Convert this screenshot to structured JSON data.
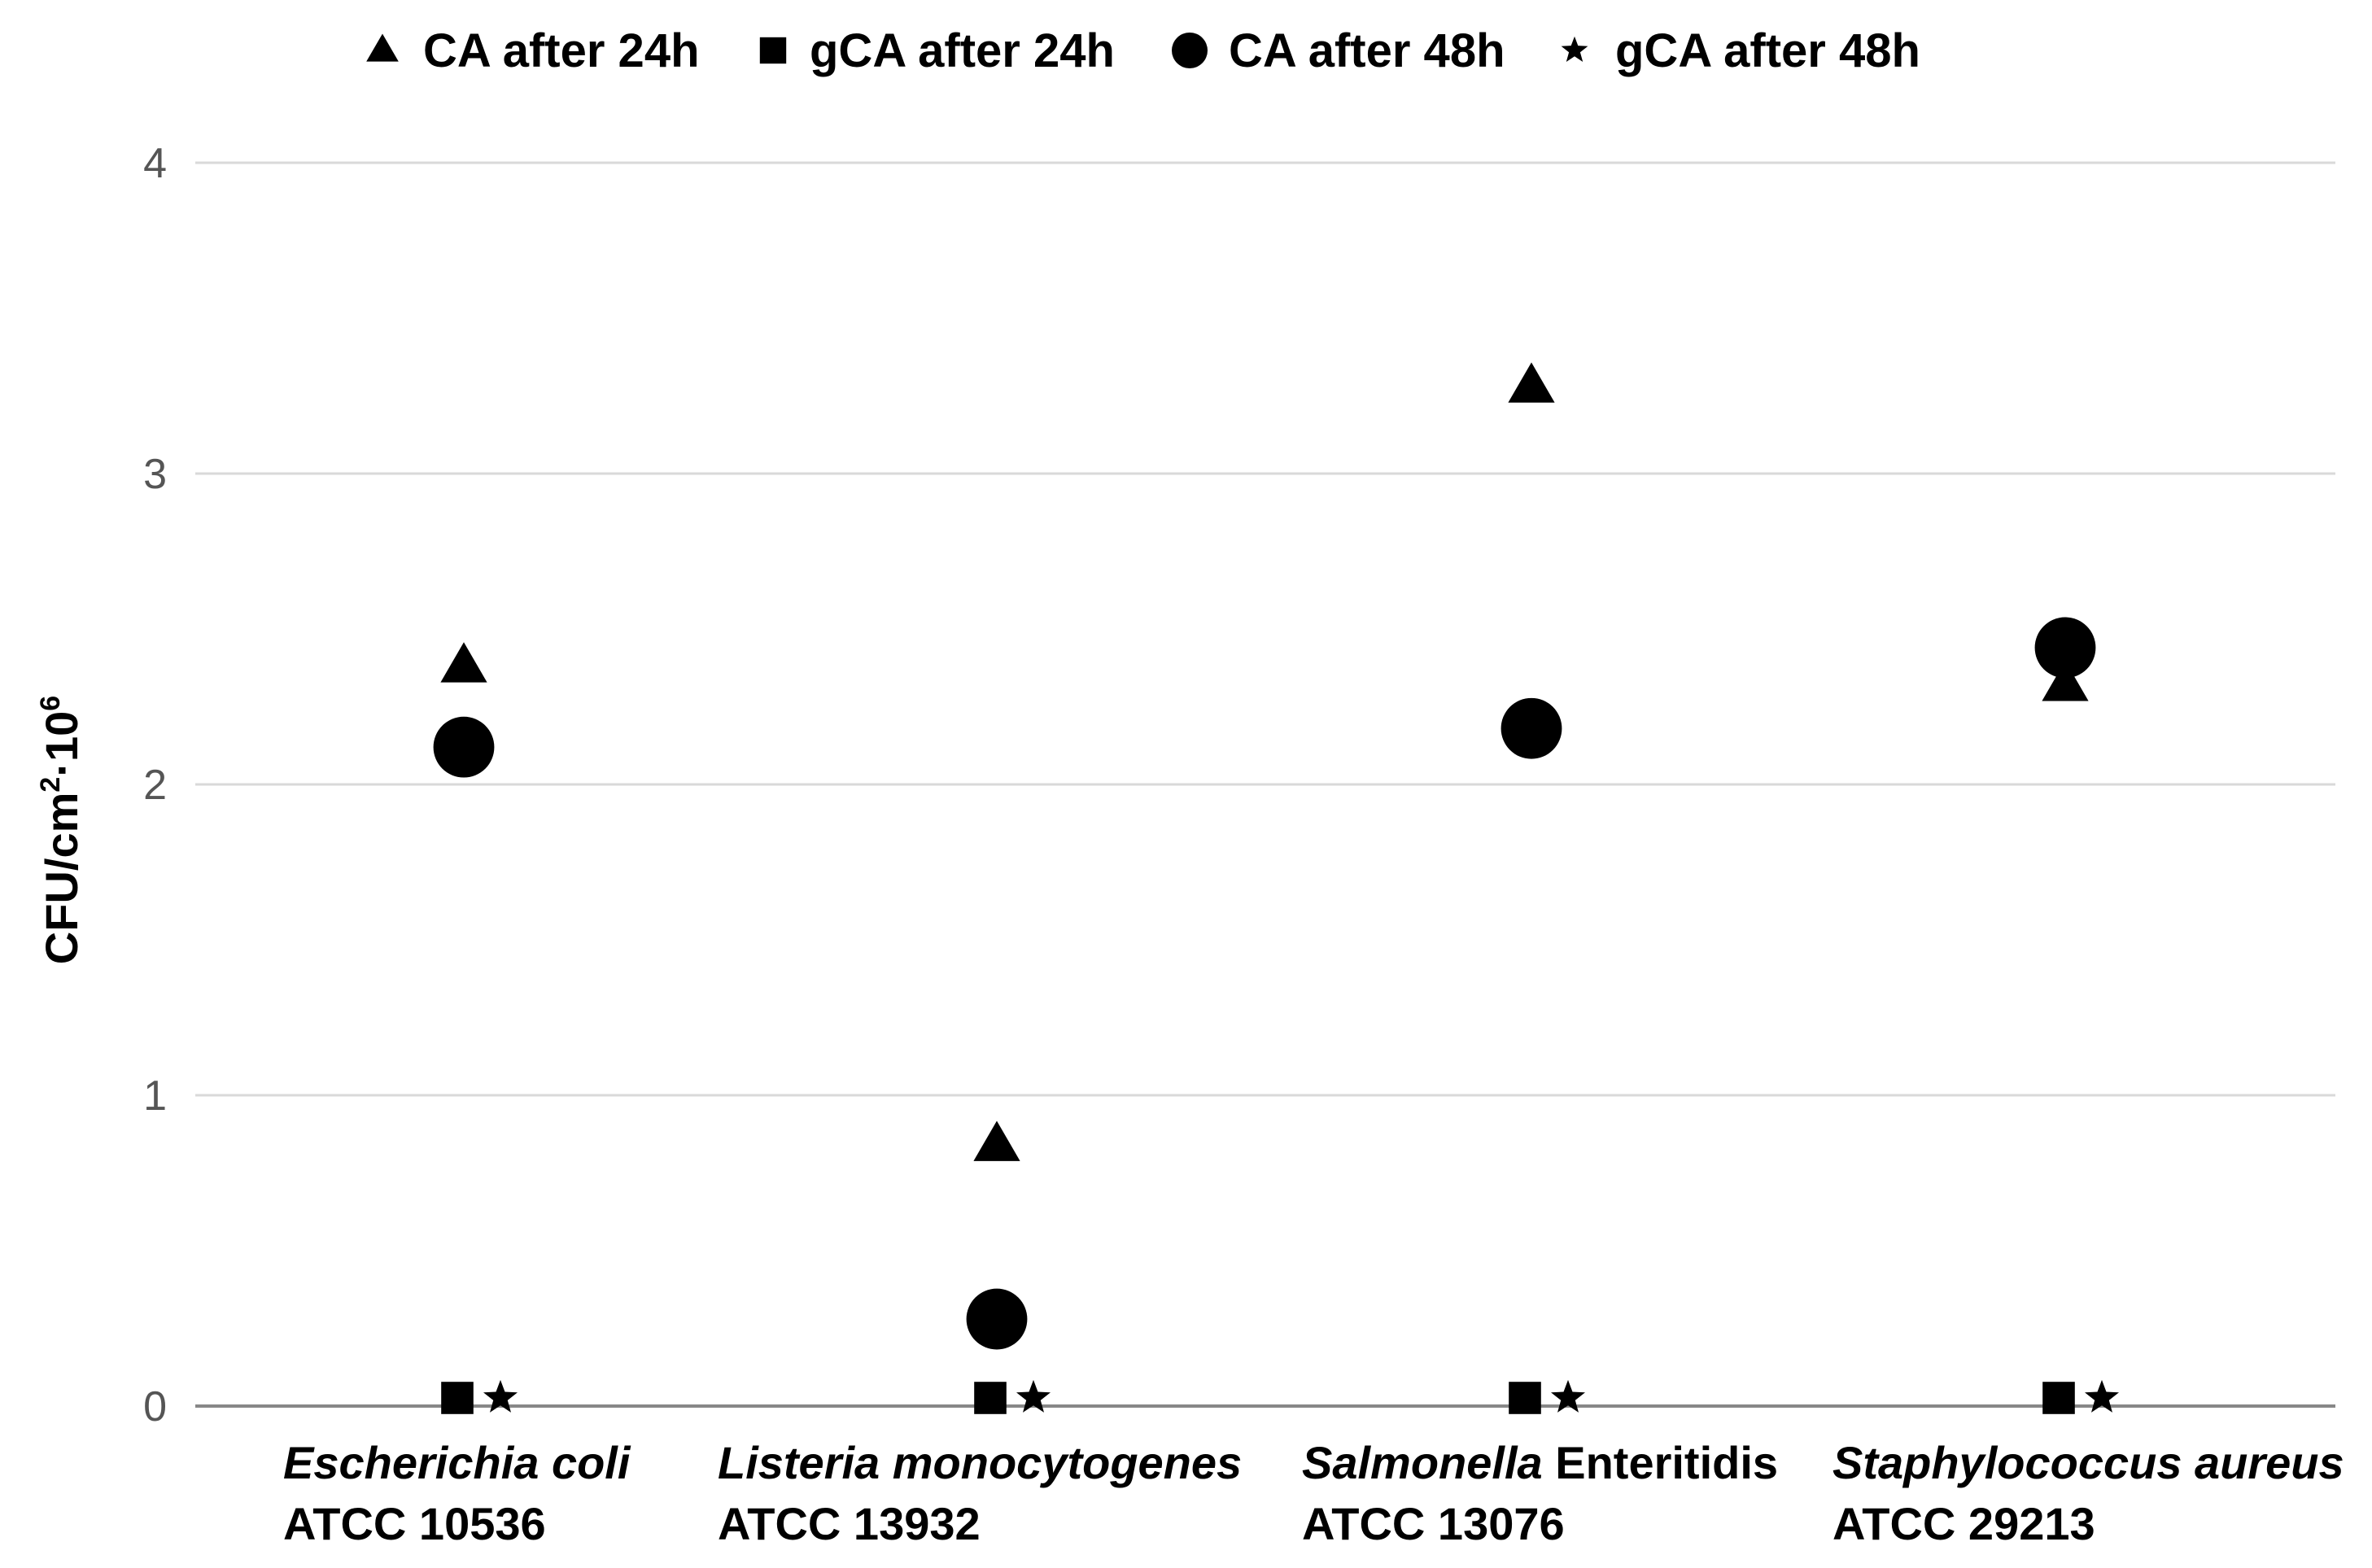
{
  "chart_data": {
    "type": "scatter",
    "title": "",
    "xlabel": "",
    "ylabel": {
      "text": "CFU/cm",
      "sup1": "2",
      "sep": "·",
      "base": "10",
      "sup2": "6"
    },
    "ylim": [
      0,
      4
    ],
    "yticks": [
      "0",
      "1",
      "2",
      "3",
      "4"
    ],
    "grid": true,
    "legend_position": "top",
    "categories": [
      {
        "name_italic": "Escherichia coli",
        "name_plain": "",
        "strain": "ATCC 10536"
      },
      {
        "name_italic": "Listeria monocytogenes",
        "name_plain": "",
        "strain": "ATCC 13932"
      },
      {
        "name_italic": "Salmonella",
        "name_plain": " Enteritidis",
        "strain": "ATCC 13076"
      },
      {
        "name_italic": "Staphylococcus aureus",
        "name_plain": "",
        "strain": "ATCC 29213"
      }
    ],
    "series": [
      {
        "name": "CA after 24h",
        "marker": "triangle",
        "values": [
          2.38,
          0.84,
          3.28,
          2.32
        ]
      },
      {
        "name": "gCA after 24h",
        "marker": "square",
        "values": [
          0,
          0,
          0,
          0
        ]
      },
      {
        "name": "CA after 48h",
        "marker": "circle",
        "values": [
          2.12,
          0.28,
          2.18,
          2.44
        ]
      },
      {
        "name": "gCA after 48h",
        "marker": "star",
        "values": [
          0,
          0,
          0,
          0
        ]
      }
    ]
  },
  "colors": {
    "marker": "#000000",
    "grid": "#d9d9d9",
    "axis": "#888888",
    "tick_text": "#555555"
  }
}
